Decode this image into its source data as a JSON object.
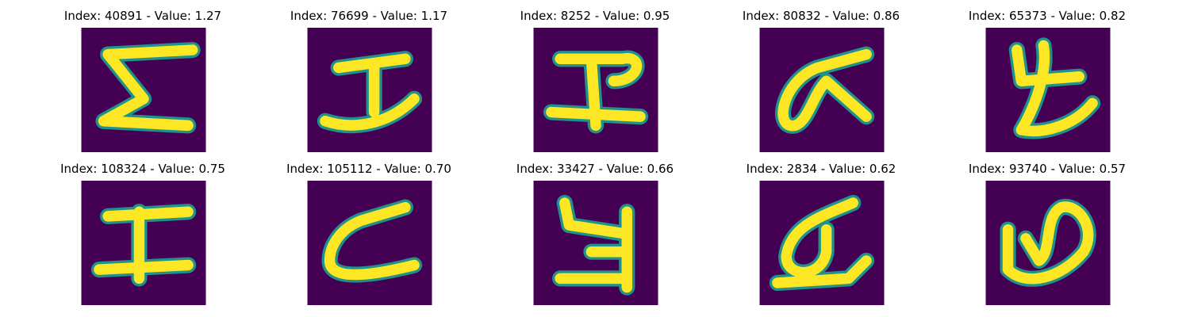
{
  "colors": {
    "background": "#440154",
    "foreground": "#fde725",
    "edge": "#21918c"
  },
  "panels": [
    {
      "title": "Index: 40891 - Value: 1.27"
    },
    {
      "title": "Index: 76699 - Value: 1.17"
    },
    {
      "title": "Index: 8252 - Value: 0.95"
    },
    {
      "title": "Index: 80832 - Value: 0.86"
    },
    {
      "title": "Index: 65373 - Value: 0.82"
    },
    {
      "title": "Index: 108324 - Value: 0.75"
    },
    {
      "title": "Index: 105112 - Value: 0.70"
    },
    {
      "title": "Index: 33427 - Value: 0.66"
    },
    {
      "title": "Index: 2834 - Value: 0.62"
    },
    {
      "title": "Index: 93740 - Value: 0.57"
    }
  ]
}
